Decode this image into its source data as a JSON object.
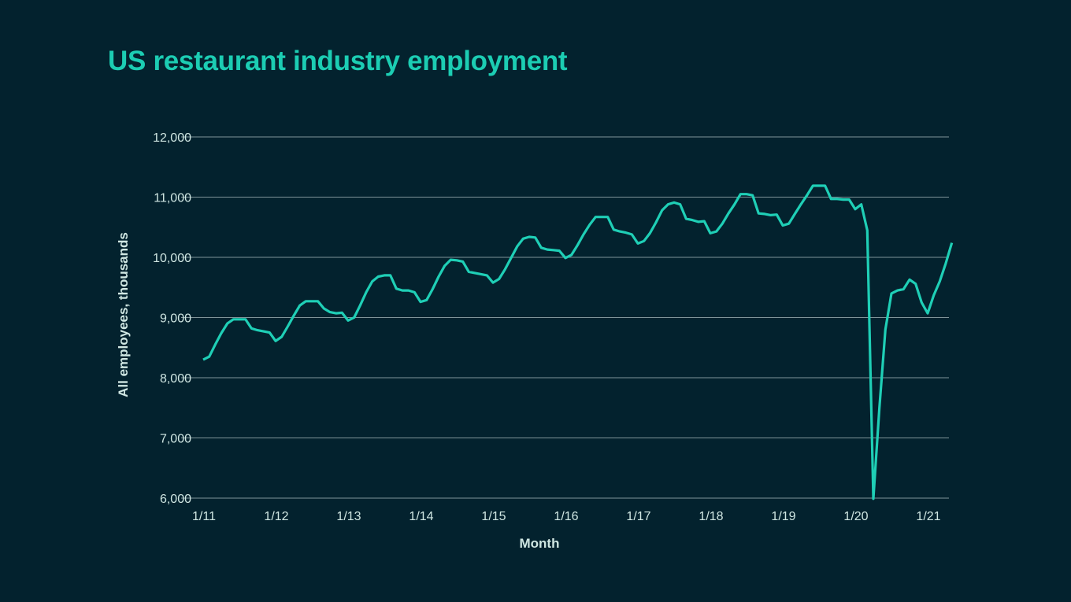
{
  "chart_data": {
    "type": "line",
    "title": "US restaurant industry employment",
    "xlabel": "Month",
    "ylabel": "All employees, thousands",
    "ylim": [
      6000,
      12000
    ],
    "y_ticks": [
      "6,000",
      "7,000",
      "8,000",
      "9,000",
      "10,000",
      "11,000",
      "12,000"
    ],
    "x_ticks": [
      "1/11",
      "1/12",
      "1/13",
      "1/14",
      "1/15",
      "1/16",
      "1/17",
      "1/18",
      "1/19",
      "1/20",
      "1/21"
    ],
    "grid": "horizontal",
    "line_color": "#1fcfb6",
    "x_start": "2011-01",
    "x_end": "2021-05",
    "frequency": "monthly",
    "values": [
      8300,
      8350,
      8550,
      8740,
      8900,
      8970,
      8970,
      8970,
      8820,
      8790,
      8770,
      8750,
      8610,
      8680,
      8850,
      9030,
      9200,
      9270,
      9270,
      9270,
      9150,
      9090,
      9070,
      9080,
      8950,
      9000,
      9200,
      9420,
      9600,
      9680,
      9700,
      9700,
      9480,
      9450,
      9450,
      9420,
      9260,
      9290,
      9470,
      9680,
      9860,
      9960,
      9950,
      9930,
      9760,
      9740,
      9720,
      9700,
      9580,
      9640,
      9800,
      9990,
      10180,
      10310,
      10340,
      10330,
      10160,
      10130,
      10120,
      10110,
      9990,
      10040,
      10200,
      10380,
      10540,
      10670,
      10670,
      10670,
      10460,
      10430,
      10410,
      10380,
      10230,
      10270,
      10400,
      10580,
      10780,
      10880,
      10910,
      10880,
      10640,
      10620,
      10590,
      10600,
      10400,
      10430,
      10560,
      10730,
      10880,
      11050,
      11050,
      11030,
      10730,
      10720,
      10700,
      10710,
      10530,
      10560,
      10720,
      10880,
      11030,
      11190,
      11190,
      11190,
      10970,
      10970,
      10960,
      10960,
      10800,
      10880,
      10450,
      5990,
      7500,
      8800,
      9400,
      9450,
      9470,
      9630,
      9560,
      9250,
      9070,
      9370,
      9600,
      9900,
      10240
    ]
  }
}
